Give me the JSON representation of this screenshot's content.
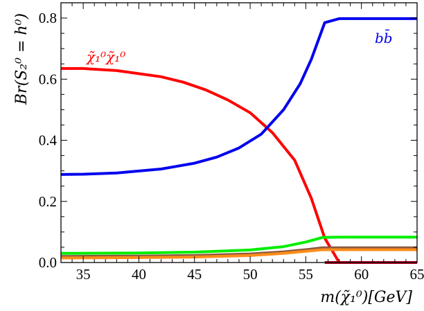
{
  "chart_data": {
    "type": "line",
    "xlabel": "m(χ̃₁⁰)[GeV]",
    "ylabel": "Br(S₂⁰ = h⁰)",
    "xlim": [
      33,
      65
    ],
    "ylim": [
      0,
      0.85
    ],
    "grid": false,
    "x_ticks": [
      "35",
      "40",
      "45",
      "50",
      "55",
      "60",
      "65"
    ],
    "y_ticks": [
      "0.0",
      "0.2",
      "0.4",
      "0.6",
      "0.8"
    ],
    "series": [
      {
        "name": "χ̃₁⁰χ̃₁⁰",
        "color": "#ff0000",
        "x": [
          33,
          35,
          38,
          42,
          44,
          46,
          48,
          50,
          52,
          54,
          55.5,
          56.7,
          58,
          65
        ],
        "y": [
          0.635,
          0.635,
          0.628,
          0.608,
          0.59,
          0.565,
          0.532,
          0.49,
          0.425,
          0.335,
          0.21,
          0.08,
          0.0,
          0.0
        ]
      },
      {
        "name": "bb̄",
        "color": "#0000ee",
        "x": [
          33,
          35,
          38,
          42,
          45,
          47,
          49,
          51,
          53,
          54.5,
          55.5,
          56.7,
          58,
          65
        ],
        "y": [
          0.288,
          0.289,
          0.293,
          0.306,
          0.325,
          0.345,
          0.375,
          0.42,
          0.5,
          0.585,
          0.665,
          0.785,
          0.798,
          0.798
        ]
      },
      {
        "name": "",
        "color": "#00ee00",
        "x": [
          33,
          40,
          45,
          50,
          53,
          55,
          56.5,
          58,
          65
        ],
        "y": [
          0.03,
          0.031,
          0.034,
          0.041,
          0.052,
          0.067,
          0.082,
          0.083,
          0.083
        ]
      },
      {
        "name": "",
        "color": "#8a5a40",
        "x": [
          33,
          40,
          45,
          50,
          53,
          55,
          56.5,
          58,
          65
        ],
        "y": [
          0.02,
          0.021,
          0.023,
          0.028,
          0.035,
          0.042,
          0.048,
          0.048,
          0.048
        ]
      },
      {
        "name": "",
        "color": "#ff8c1a",
        "x": [
          33,
          40,
          45,
          50,
          53,
          55,
          56.5,
          58,
          65
        ],
        "y": [
          0.015,
          0.016,
          0.018,
          0.023,
          0.03,
          0.037,
          0.042,
          0.042,
          0.042
        ]
      },
      {
        "name": "",
        "color": "#b00020",
        "x": [
          56.7,
          58,
          65
        ],
        "y": [
          0.0,
          0.0,
          0.0
        ]
      }
    ]
  }
}
